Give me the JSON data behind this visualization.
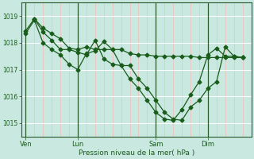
{
  "background_color": "#c8e8e0",
  "plot_bg_color": "#c8e8e0",
  "grid_color_h": "#ffffff",
  "grid_color_v": "#ffb0b0",
  "line_color": "#1a5c1a",
  "xlabel": "Pression niveau de la mer( hPa )",
  "ylim": [
    1014.5,
    1019.5
  ],
  "yticks": [
    1015,
    1016,
    1017,
    1018,
    1019
  ],
  "xtick_labels": [
    "Ven",
    "Lun",
    "Sam",
    "Dim"
  ],
  "xtick_positions": [
    0,
    6,
    15,
    21
  ],
  "vline_positions": [
    0,
    6,
    15,
    21
  ],
  "xlim": [
    -0.5,
    26
  ],
  "n_minor_vlines": 27,
  "series1_x": [
    0,
    1,
    2,
    3,
    4,
    5,
    6,
    7,
    8,
    9,
    10,
    11,
    12,
    13,
    14,
    15,
    16,
    17,
    18,
    19,
    20,
    21,
    22,
    23,
    24,
    25
  ],
  "series1_y": [
    1018.45,
    1018.9,
    1018.55,
    1018.35,
    1018.15,
    1017.8,
    1017.75,
    1017.85,
    1017.75,
    1017.75,
    1017.75,
    1017.75,
    1017.6,
    1017.55,
    1017.55,
    1017.5,
    1017.5,
    1017.5,
    1017.5,
    1017.5,
    1017.45,
    1017.45,
    1017.45,
    1017.45,
    1017.45,
    1017.45
  ],
  "series2_x": [
    0,
    1,
    2,
    3,
    4,
    5,
    6,
    7,
    8,
    9,
    10,
    11,
    12,
    13,
    14,
    15,
    16,
    17,
    18,
    19,
    20,
    21,
    22,
    23,
    24,
    25
  ],
  "series2_y": [
    1018.35,
    1018.85,
    1018.0,
    1017.75,
    1017.55,
    1017.2,
    1017.0,
    1017.6,
    1017.7,
    1018.05,
    1017.75,
    1017.15,
    1017.15,
    1016.65,
    1016.3,
    1015.85,
    1015.4,
    1015.15,
    1015.1,
    1015.6,
    1015.85,
    1016.3,
    1016.55,
    1017.85,
    1017.5,
    1017.45
  ],
  "series3_x": [
    1,
    2,
    3,
    4,
    5,
    6,
    7,
    8,
    9,
    10,
    11,
    12,
    13,
    14,
    15,
    16,
    17,
    18,
    19,
    20,
    21,
    22,
    23,
    24,
    25
  ],
  "series3_y": [
    1018.9,
    1018.4,
    1018.1,
    1017.75,
    1017.75,
    1017.65,
    1017.55,
    1018.1,
    1017.4,
    1017.2,
    1017.15,
    1016.65,
    1016.3,
    1015.85,
    1015.4,
    1015.15,
    1015.1,
    1015.5,
    1016.05,
    1016.55,
    1017.55,
    1017.8,
    1017.5,
    1017.5,
    1017.45
  ]
}
